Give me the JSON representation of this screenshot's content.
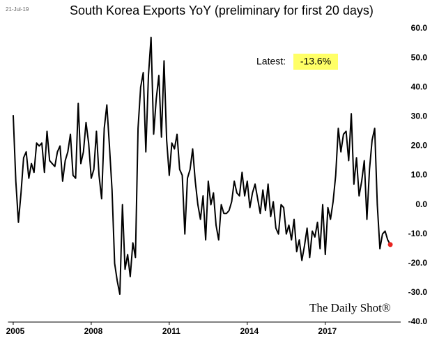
{
  "chart_data": {
    "type": "line",
    "title": "South Korea Exports YoY (preliminary for first 20 days)",
    "date_stamp": "21-Jul-19",
    "source": "The Daily Shot®",
    "annotation": {
      "text": "Latest:",
      "value_label": "-13.6%"
    },
    "x": [
      2005,
      2005.1,
      2005.2,
      2005.3,
      2005.4,
      2005.5,
      2005.6,
      2005.7,
      2005.8,
      2005.9,
      2006,
      2006.1,
      2006.2,
      2006.3,
      2006.4,
      2006.5,
      2006.6,
      2006.7,
      2006.8,
      2006.9,
      2007,
      2007.1,
      2007.2,
      2007.3,
      2007.4,
      2007.5,
      2007.6,
      2007.7,
      2007.8,
      2007.9,
      2008,
      2008.1,
      2008.2,
      2008.3,
      2008.4,
      2008.5,
      2008.6,
      2008.7,
      2008.8,
      2008.9,
      2009,
      2009.1,
      2009.2,
      2009.3,
      2009.4,
      2009.5,
      2009.6,
      2009.7,
      2009.8,
      2009.9,
      2010,
      2010.1,
      2010.2,
      2010.3,
      2010.4,
      2010.5,
      2010.6,
      2010.7,
      2010.8,
      2010.9,
      2011,
      2011.1,
      2011.2,
      2011.3,
      2011.4,
      2011.5,
      2011.6,
      2011.7,
      2011.8,
      2011.9,
      2012,
      2012.1,
      2012.2,
      2012.3,
      2012.4,
      2012.5,
      2012.6,
      2012.7,
      2012.8,
      2012.9,
      2013,
      2013.1,
      2013.2,
      2013.3,
      2013.4,
      2013.5,
      2013.6,
      2013.7,
      2013.8,
      2013.9,
      2014,
      2014.1,
      2014.2,
      2014.3,
      2014.4,
      2014.5,
      2014.6,
      2014.7,
      2014.8,
      2014.9,
      2015,
      2015.1,
      2015.2,
      2015.3,
      2015.4,
      2015.5,
      2015.6,
      2015.7,
      2015.8,
      2015.9,
      2016,
      2016.1,
      2016.2,
      2016.3,
      2016.4,
      2016.5,
      2016.6,
      2016.7,
      2016.8,
      2016.9,
      2017,
      2017.1,
      2017.2,
      2017.3,
      2017.4,
      2017.5,
      2017.6,
      2017.7,
      2017.8,
      2017.9,
      2018,
      2018.1,
      2018.2,
      2018.3,
      2018.4,
      2018.5,
      2018.6,
      2018.7,
      2018.8,
      2018.9,
      2019,
      2019.1,
      2019.2,
      2019.3,
      2019.4,
      2019.5
    ],
    "values": [
      30.5,
      8,
      -6,
      4,
      16,
      18,
      9,
      14,
      11,
      21,
      20,
      21,
      11,
      25,
      15,
      14,
      13,
      18,
      20,
      8,
      15,
      18,
      24,
      10,
      9,
      34.5,
      14,
      18,
      28,
      21,
      9,
      12,
      25,
      10,
      2,
      26,
      34,
      20,
      5,
      -20,
      -26,
      -30.5,
      0,
      -22,
      -17,
      -24.5,
      -13,
      -18,
      26,
      40,
      45,
      18,
      44,
      57,
      24,
      36,
      44,
      23,
      49,
      22,
      10,
      21,
      19,
      24,
      12,
      10,
      -10,
      9,
      12,
      19,
      8,
      0,
      -5,
      3,
      -12,
      8,
      0,
      4,
      -7,
      -12,
      0,
      -3,
      -3,
      -2,
      1,
      8,
      4,
      3,
      11,
      3,
      8,
      -1,
      4,
      7,
      2,
      -3,
      5,
      -2,
      7,
      -4,
      1,
      -8,
      -10,
      0,
      -1,
      -10,
      -7,
      -12,
      -5,
      -16,
      -12,
      -19,
      -14,
      -8,
      -18,
      -9,
      -11,
      -6,
      -15,
      0,
      -17,
      -1,
      -5,
      1,
      10,
      26,
      18,
      24,
      25,
      15,
      31,
      7,
      16,
      3,
      8,
      15,
      -5,
      12,
      22,
      26,
      0,
      -15,
      -10,
      -9,
      -12,
      -13.6
    ],
    "color": "#000000",
    "marker_color": "#e8231f",
    "highlight_color": "#ffff66",
    "xlim": [
      2004.8,
      2019.9
    ],
    "xticks": [
      2005,
      2008,
      2011,
      2014,
      2017
    ],
    "ylim": [
      -40,
      60
    ],
    "yticks": [
      {
        "value": -40,
        "label": "-40.0"
      },
      {
        "value": -30,
        "label": "-30.0"
      },
      {
        "value": -20,
        "label": "-20.0"
      },
      {
        "value": -10,
        "label": "-10.0"
      },
      {
        "value": 0,
        "label": "0.0"
      },
      {
        "value": 10,
        "label": "10.0"
      },
      {
        "value": 20,
        "label": "20.0"
      },
      {
        "value": 30,
        "label": "30.0"
      },
      {
        "value": 40,
        "label": "40.0"
      },
      {
        "value": 50,
        "label": "50.0"
      },
      {
        "value": 60,
        "label": "60.0"
      }
    ],
    "grid": false
  }
}
